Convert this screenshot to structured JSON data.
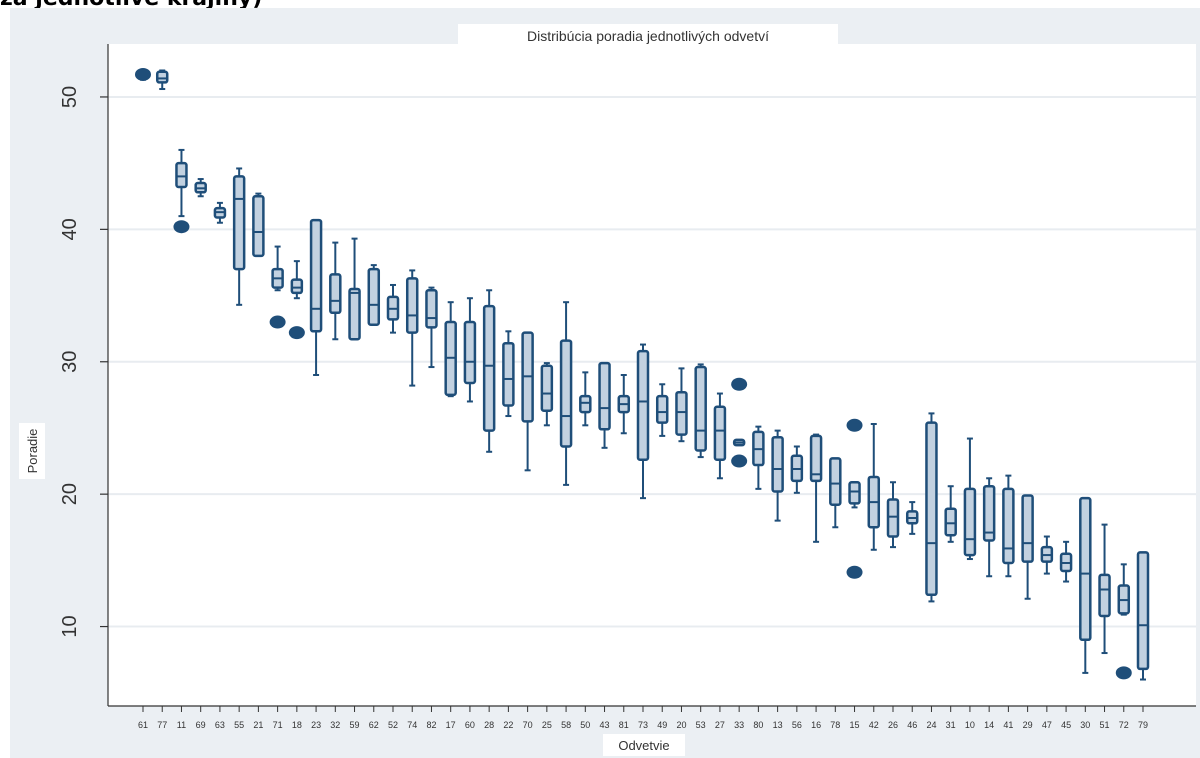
{
  "caption_fragment": "za jednotlivé krajiny)",
  "chart_data": {
    "type": "box",
    "title": "Distribúcia poradia jednotlivých odvetví",
    "xlabel": "Odvetvie",
    "ylabel": "Poradie",
    "ylim": [
      4,
      54
    ],
    "yticks": [
      10,
      20,
      30,
      40,
      50
    ],
    "grid": true,
    "colors": {
      "background": "#ebeff3",
      "plot": "#ffffff",
      "box_fill": "#c2d1e0",
      "box_stroke": "#1f4e79",
      "outlier": "#1f4e79"
    },
    "categories": [
      "61",
      "77",
      "11",
      "69",
      "63",
      "55",
      "21",
      "71",
      "18",
      "23",
      "32",
      "59",
      "62",
      "52",
      "74",
      "82",
      "17",
      "60",
      "28",
      "22",
      "70",
      "25",
      "58",
      "50",
      "43",
      "81",
      "73",
      "49",
      "20",
      "53",
      "27",
      "33",
      "80",
      "13",
      "56",
      "16",
      "78",
      "15",
      "42",
      "26",
      "46",
      "24",
      "31",
      "10",
      "14",
      "41",
      "29",
      "47",
      "45",
      "30",
      "51",
      "72",
      "79"
    ],
    "boxes": [
      {
        "category": "61",
        "min": 51.3,
        "q1": 51.4,
        "median": 51.7,
        "q3": 51.9,
        "max": 52.0,
        "outliers": [
          51.7
        ]
      },
      {
        "category": "77",
        "min": 50.6,
        "q1": 51.1,
        "median": 51.4,
        "q3": 51.9,
        "max": 52.0,
        "outliers": []
      },
      {
        "category": "11",
        "min": 41.0,
        "q1": 43.2,
        "median": 44.0,
        "q3": 45.0,
        "max": 46.0,
        "outliers": [
          40.2
        ]
      },
      {
        "category": "69",
        "min": 42.5,
        "q1": 42.8,
        "median": 43.1,
        "q3": 43.5,
        "max": 43.8,
        "outliers": []
      },
      {
        "category": "63",
        "min": 40.5,
        "q1": 40.9,
        "median": 41.3,
        "q3": 41.6,
        "max": 42.0,
        "outliers": []
      },
      {
        "category": "55",
        "min": 34.3,
        "q1": 37.0,
        "median": 42.3,
        "q3": 44.0,
        "max": 44.6,
        "outliers": []
      },
      {
        "category": "21",
        "min": 38.0,
        "q1": 38.0,
        "median": 39.8,
        "q3": 42.5,
        "max": 42.7,
        "outliers": []
      },
      {
        "category": "71",
        "min": 35.4,
        "q1": 35.6,
        "median": 36.3,
        "q3": 37.0,
        "max": 38.7,
        "outliers": [
          33.0
        ]
      },
      {
        "category": "18",
        "min": 34.8,
        "q1": 35.2,
        "median": 35.6,
        "q3": 36.2,
        "max": 37.6,
        "outliers": [
          32.2
        ]
      },
      {
        "category": "23",
        "min": 29.0,
        "q1": 32.3,
        "median": 34.0,
        "q3": 40.7,
        "max": 40.7,
        "outliers": []
      },
      {
        "category": "32",
        "min": 31.7,
        "q1": 33.7,
        "median": 34.6,
        "q3": 36.6,
        "max": 39.0,
        "outliers": []
      },
      {
        "category": "59",
        "min": 31.7,
        "q1": 31.7,
        "median": 35.2,
        "q3": 35.5,
        "max": 39.3,
        "outliers": []
      },
      {
        "category": "62",
        "min": 32.8,
        "q1": 32.8,
        "median": 34.3,
        "q3": 37.0,
        "max": 37.3,
        "outliers": []
      },
      {
        "category": "52",
        "min": 32.2,
        "q1": 33.2,
        "median": 34.0,
        "q3": 34.9,
        "max": 35.8,
        "outliers": []
      },
      {
        "category": "74",
        "min": 28.2,
        "q1": 32.2,
        "median": 33.5,
        "q3": 36.3,
        "max": 36.9,
        "outliers": []
      },
      {
        "category": "82",
        "min": 29.6,
        "q1": 32.6,
        "median": 33.3,
        "q3": 35.4,
        "max": 35.6,
        "outliers": []
      },
      {
        "category": "17",
        "min": 27.4,
        "q1": 27.5,
        "median": 30.3,
        "q3": 33.0,
        "max": 34.5,
        "outliers": []
      },
      {
        "category": "60",
        "min": 27.0,
        "q1": 28.4,
        "median": 30.0,
        "q3": 33.0,
        "max": 34.8,
        "outliers": []
      },
      {
        "category": "28",
        "min": 23.2,
        "q1": 24.8,
        "median": 29.7,
        "q3": 34.2,
        "max": 35.4,
        "outliers": []
      },
      {
        "category": "22",
        "min": 25.9,
        "q1": 26.7,
        "median": 28.7,
        "q3": 31.4,
        "max": 32.3,
        "outliers": []
      },
      {
        "category": "70",
        "min": 21.8,
        "q1": 25.5,
        "median": 28.9,
        "q3": 32.2,
        "max": 32.2,
        "outliers": []
      },
      {
        "category": "25",
        "min": 25.2,
        "q1": 26.3,
        "median": 27.6,
        "q3": 29.7,
        "max": 29.9,
        "outliers": []
      },
      {
        "category": "58",
        "min": 20.7,
        "q1": 23.6,
        "median": 25.9,
        "q3": 31.6,
        "max": 34.5,
        "outliers": []
      },
      {
        "category": "50",
        "min": 25.2,
        "q1": 26.2,
        "median": 26.9,
        "q3": 27.4,
        "max": 29.2,
        "outliers": []
      },
      {
        "category": "43",
        "min": 23.5,
        "q1": 24.9,
        "median": 26.5,
        "q3": 29.9,
        "max": 29.9,
        "outliers": []
      },
      {
        "category": "81",
        "min": 24.6,
        "q1": 26.2,
        "median": 26.8,
        "q3": 27.4,
        "max": 29.0,
        "outliers": []
      },
      {
        "category": "73",
        "min": 19.7,
        "q1": 22.6,
        "median": 27.0,
        "q3": 30.8,
        "max": 31.3,
        "outliers": []
      },
      {
        "category": "49",
        "min": 24.4,
        "q1": 25.4,
        "median": 26.2,
        "q3": 27.4,
        "max": 28.3,
        "outliers": []
      },
      {
        "category": "20",
        "min": 24.0,
        "q1": 24.5,
        "median": 26.2,
        "q3": 27.7,
        "max": 29.5,
        "outliers": []
      },
      {
        "category": "53",
        "min": 22.8,
        "q1": 23.3,
        "median": 24.8,
        "q3": 29.6,
        "max": 29.8,
        "outliers": []
      },
      {
        "category": "27",
        "min": 21.2,
        "q1": 22.6,
        "median": 24.8,
        "q3": 26.6,
        "max": 27.6,
        "outliers": []
      },
      {
        "category": "33",
        "min": 23.7,
        "q1": 23.7,
        "median": 23.9,
        "q3": 24.1,
        "max": 24.1,
        "outliers": [
          28.3,
          22.5
        ]
      },
      {
        "category": "80",
        "min": 20.4,
        "q1": 22.2,
        "median": 23.4,
        "q3": 24.7,
        "max": 25.1,
        "outliers": []
      },
      {
        "category": "13",
        "min": 18.0,
        "q1": 20.2,
        "median": 21.9,
        "q3": 24.3,
        "max": 24.8,
        "outliers": []
      },
      {
        "category": "56",
        "min": 20.1,
        "q1": 21.0,
        "median": 21.9,
        "q3": 22.9,
        "max": 23.6,
        "outliers": []
      },
      {
        "category": "16",
        "min": 16.4,
        "q1": 21.0,
        "median": 21.5,
        "q3": 24.4,
        "max": 24.5,
        "outliers": []
      },
      {
        "category": "78",
        "min": 17.5,
        "q1": 19.2,
        "median": 20.8,
        "q3": 22.7,
        "max": 22.7,
        "outliers": []
      },
      {
        "category": "15",
        "min": 19.0,
        "q1": 19.3,
        "median": 20.2,
        "q3": 20.9,
        "max": 20.9,
        "outliers": [
          25.2,
          14.1
        ]
      },
      {
        "category": "42",
        "min": 15.8,
        "q1": 17.5,
        "median": 19.4,
        "q3": 21.3,
        "max": 25.3,
        "outliers": []
      },
      {
        "category": "26",
        "min": 16.0,
        "q1": 16.8,
        "median": 18.3,
        "q3": 19.6,
        "max": 20.9,
        "outliers": []
      },
      {
        "category": "46",
        "min": 17.0,
        "q1": 17.8,
        "median": 18.2,
        "q3": 18.7,
        "max": 19.4,
        "outliers": []
      },
      {
        "category": "24",
        "min": 11.9,
        "q1": 12.4,
        "median": 16.3,
        "q3": 25.4,
        "max": 26.1,
        "outliers": []
      },
      {
        "category": "31",
        "min": 16.4,
        "q1": 16.9,
        "median": 17.8,
        "q3": 18.9,
        "max": 20.6,
        "outliers": []
      },
      {
        "category": "10",
        "min": 15.1,
        "q1": 15.4,
        "median": 16.6,
        "q3": 20.4,
        "max": 24.2,
        "outliers": []
      },
      {
        "category": "14",
        "min": 13.8,
        "q1": 16.5,
        "median": 17.1,
        "q3": 20.6,
        "max": 21.2,
        "outliers": []
      },
      {
        "category": "41",
        "min": 13.8,
        "q1": 14.8,
        "median": 15.9,
        "q3": 20.4,
        "max": 21.4,
        "outliers": []
      },
      {
        "category": "29",
        "min": 12.1,
        "q1": 14.9,
        "median": 16.3,
        "q3": 19.9,
        "max": 19.9,
        "outliers": []
      },
      {
        "category": "47",
        "min": 14.0,
        "q1": 14.9,
        "median": 15.4,
        "q3": 16.0,
        "max": 16.8,
        "outliers": []
      },
      {
        "category": "45",
        "min": 13.4,
        "q1": 14.2,
        "median": 14.8,
        "q3": 15.5,
        "max": 16.4,
        "outliers": []
      },
      {
        "category": "30",
        "min": 6.5,
        "q1": 9.0,
        "median": 14.0,
        "q3": 19.7,
        "max": 19.7,
        "outliers": []
      },
      {
        "category": "51",
        "min": 8.0,
        "q1": 10.8,
        "median": 12.8,
        "q3": 13.9,
        "max": 17.7,
        "outliers": []
      },
      {
        "category": "72",
        "min": 10.9,
        "q1": 11.0,
        "median": 12.0,
        "q3": 13.1,
        "max": 14.7,
        "outliers": [
          6.5
        ]
      },
      {
        "category": "79",
        "min": 6.0,
        "q1": 6.8,
        "median": 10.1,
        "q3": 15.6,
        "max": 15.6,
        "outliers": []
      }
    ]
  }
}
